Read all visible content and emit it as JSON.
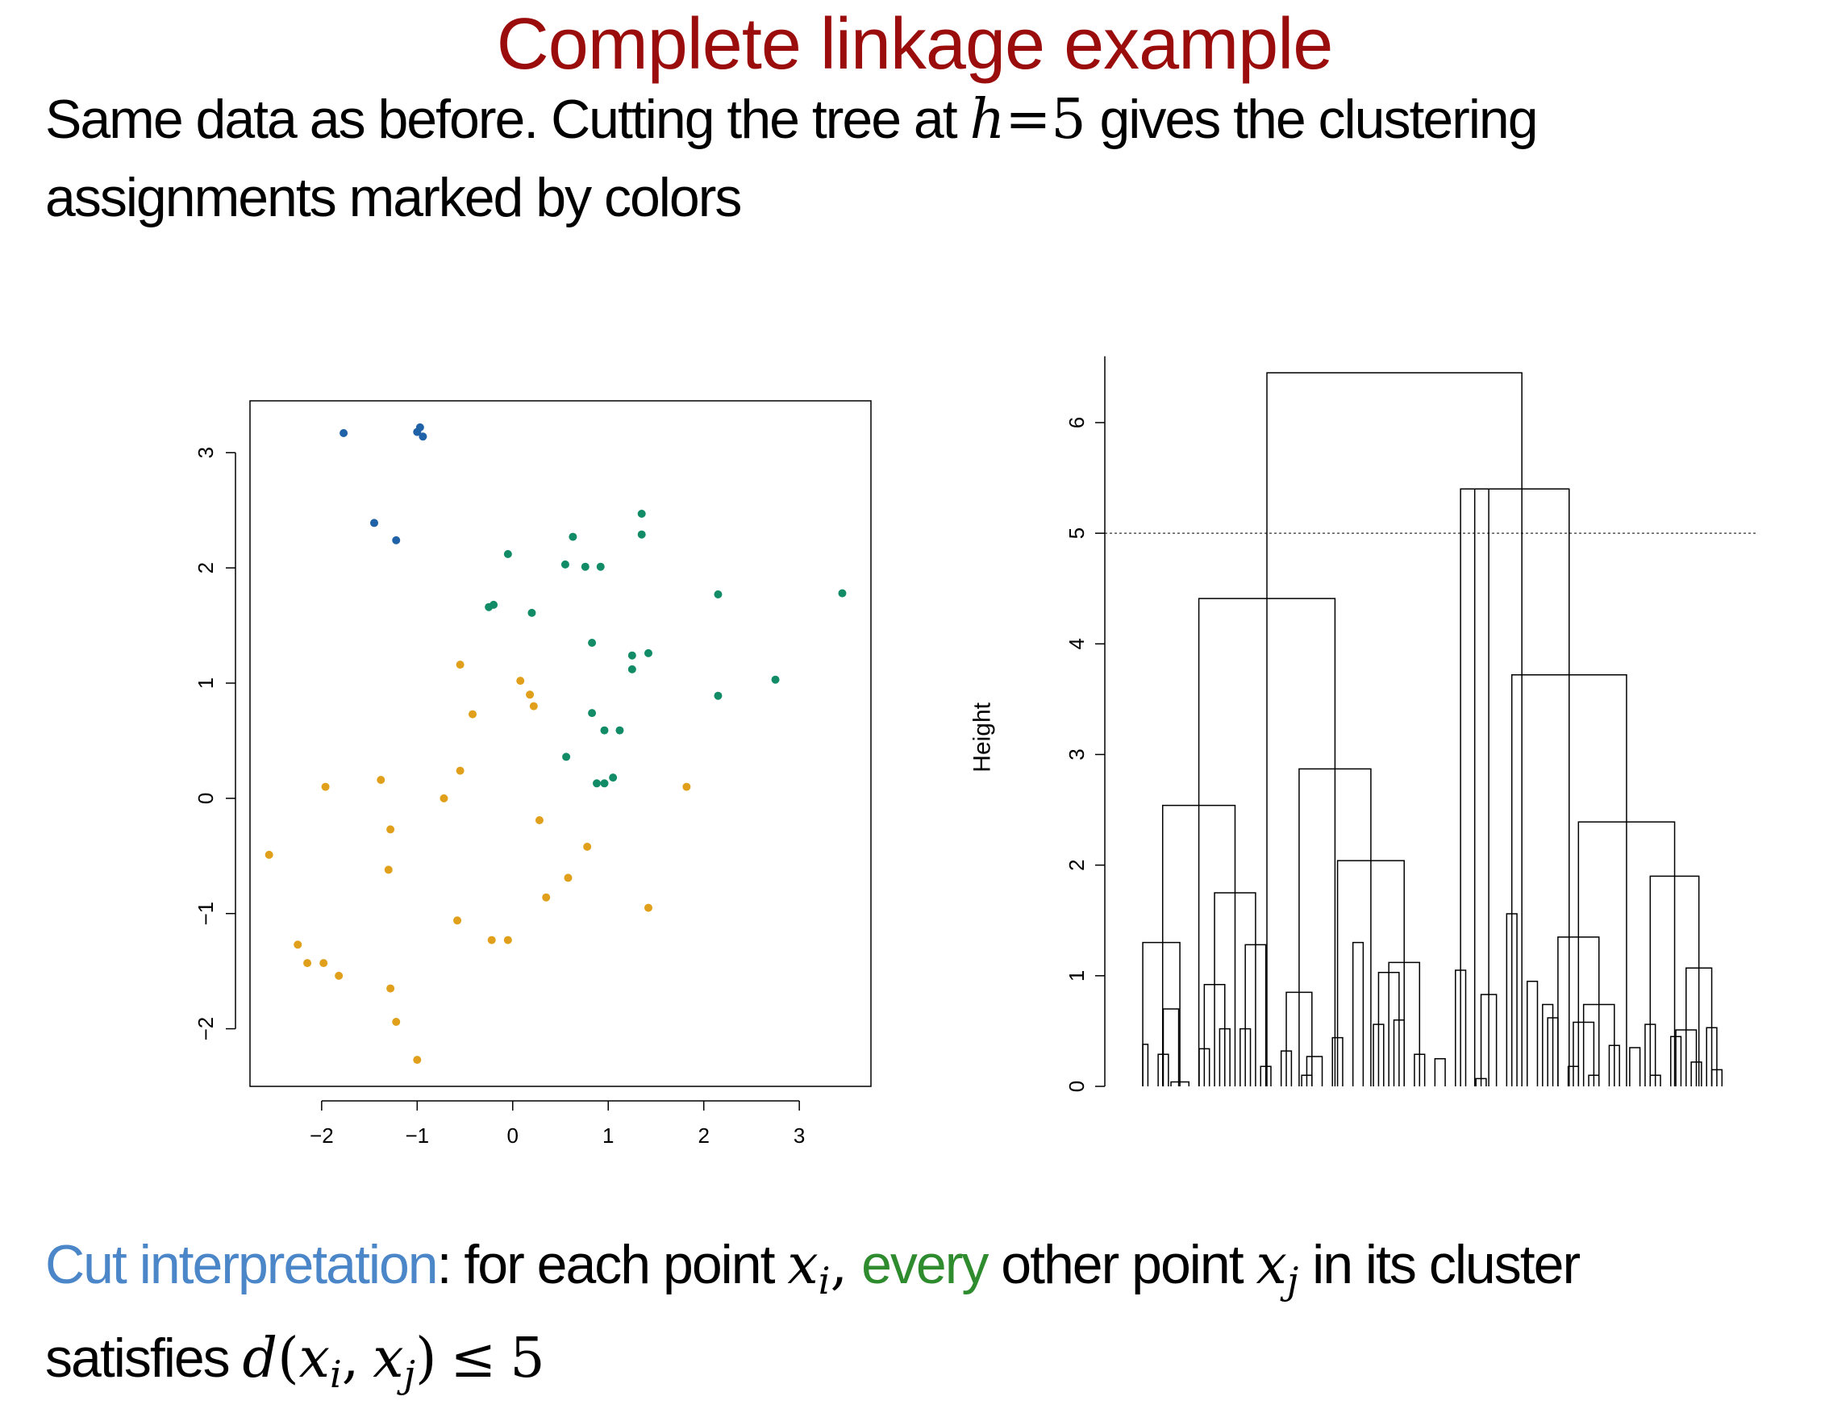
{
  "title": "Complete linkage example",
  "intro": {
    "part1": "Same data as before. Cutting the tree at",
    "var": "h",
    "eq": "=",
    "val": "5",
    "part2": "gives the clustering",
    "line2": "assignments marked by colors"
  },
  "colors": {
    "title": "#9b0d0d",
    "blue": "#1f62a8",
    "green": "#128c67",
    "orange": "#e1a01b",
    "cut_term": "#4a86c8",
    "every": "#2e8b2e"
  },
  "footer": {
    "term": "Cut interpretation",
    "colon": ": for each point",
    "xi": "x",
    "i": "i",
    "comma": ",",
    "every": "every",
    "mid": "other point",
    "xj": "x",
    "j": "j",
    "end": "in its cluster",
    "line2": "satisfies",
    "d": "d",
    "lparen": "(",
    "sep": ",",
    "rparen": ")",
    "leq": "≤",
    "bound": "5"
  },
  "chart_data": [
    {
      "type": "scatter",
      "xlim": [
        -2.75,
        3.75
      ],
      "ylim": [
        -2.5,
        3.45
      ],
      "xticks": [
        -2,
        -1,
        0,
        1,
        2,
        3
      ],
      "yticks": [
        -2,
        -1,
        0,
        1,
        2,
        3
      ],
      "xtick_labels": [
        "−2",
        "−1",
        "0",
        "1",
        "2",
        "3"
      ],
      "ytick_labels": [
        "−2",
        "−1",
        "0",
        "1",
        "2",
        "3"
      ],
      "series": [
        {
          "color": "blue",
          "points": [
            [
              -1.77,
              3.17
            ],
            [
              -1.0,
              3.18
            ],
            [
              -0.97,
              3.22
            ],
            [
              -0.94,
              3.14
            ],
            [
              -1.45,
              2.39
            ],
            [
              -1.22,
              2.24
            ]
          ]
        },
        {
          "color": "green",
          "points": [
            [
              1.35,
              2.47
            ],
            [
              1.35,
              2.29
            ],
            [
              0.63,
              2.27
            ],
            [
              -0.05,
              2.12
            ],
            [
              0.55,
              2.03
            ],
            [
              0.76,
              2.01
            ],
            [
              0.92,
              2.01
            ],
            [
              2.15,
              1.77
            ],
            [
              3.45,
              1.78
            ],
            [
              -0.25,
              1.66
            ],
            [
              -0.2,
              1.68
            ],
            [
              0.2,
              1.61
            ],
            [
              0.83,
              1.35
            ],
            [
              1.25,
              1.24
            ],
            [
              1.42,
              1.26
            ],
            [
              1.25,
              1.12
            ],
            [
              2.75,
              1.03
            ],
            [
              2.15,
              0.89
            ],
            [
              0.83,
              0.74
            ],
            [
              0.96,
              0.59
            ],
            [
              1.12,
              0.59
            ],
            [
              0.56,
              0.36
            ],
            [
              0.88,
              0.13
            ],
            [
              0.96,
              0.13
            ],
            [
              1.05,
              0.18
            ]
          ]
        },
        {
          "color": "orange",
          "points": [
            [
              -0.55,
              1.16
            ],
            [
              0.08,
              1.02
            ],
            [
              0.18,
              0.9
            ],
            [
              0.22,
              0.8
            ],
            [
              -0.42,
              0.73
            ],
            [
              -0.55,
              0.24
            ],
            [
              -1.38,
              0.16
            ],
            [
              -1.96,
              0.1
            ],
            [
              1.82,
              0.1
            ],
            [
              -0.72,
              0.0
            ],
            [
              0.28,
              -0.19
            ],
            [
              -1.28,
              -0.27
            ],
            [
              0.78,
              -0.42
            ],
            [
              -1.3,
              -0.62
            ],
            [
              0.58,
              -0.69
            ],
            [
              -2.55,
              -0.49
            ],
            [
              0.35,
              -0.86
            ],
            [
              1.42,
              -0.95
            ],
            [
              -0.58,
              -1.06
            ],
            [
              -0.22,
              -1.23
            ],
            [
              -0.05,
              -1.23
            ],
            [
              -2.25,
              -1.27
            ],
            [
              -2.15,
              -1.43
            ],
            [
              -1.98,
              -1.43
            ],
            [
              -1.82,
              -1.54
            ],
            [
              -1.28,
              -1.65
            ],
            [
              -1.22,
              -1.94
            ],
            [
              -1.0,
              -2.27
            ]
          ]
        }
      ]
    },
    {
      "type": "dendrogram",
      "ylabel": "Height",
      "ylim": [
        0,
        6.5
      ],
      "yticks": [
        0,
        1,
        2,
        3,
        4,
        5,
        6
      ],
      "ytick_labels": [
        "0",
        "1",
        "2",
        "3",
        "4",
        "5",
        "6"
      ],
      "cut_height": 5,
      "leaf_count": 60,
      "merges": [
        [
          1.5,
          5.12,
          1.3
        ],
        [
          1.5,
          2.0,
          0.38
        ],
        [
          3.0,
          4.0,
          0.29
        ],
        [
          3.5,
          5.0,
          0.7
        ],
        [
          4.25,
          6.0,
          0.04
        ],
        [
          7.0,
          8.0,
          0.34
        ],
        [
          9.0,
          10.0,
          0.52
        ],
        [
          7.5,
          9.5,
          0.92
        ],
        [
          11.0,
          12.0,
          0.52
        ],
        [
          13.0,
          14.0,
          0.18
        ],
        [
          11.5,
          13.5,
          1.28
        ],
        [
          8.5,
          12.5,
          1.75
        ],
        [
          3.44,
          10.5,
          2.54
        ],
        [
          15.0,
          16.0,
          0.32
        ],
        [
          17.0,
          18.0,
          0.1
        ],
        [
          17.5,
          19.0,
          0.27
        ],
        [
          15.5,
          18.0,
          0.85
        ],
        [
          20.0,
          21.0,
          0.44
        ],
        [
          22.0,
          23.0,
          1.3
        ],
        [
          24.0,
          25.0,
          0.56
        ],
        [
          26.0,
          27.0,
          0.6
        ],
        [
          24.5,
          26.5,
          1.03
        ],
        [
          28.0,
          29.0,
          0.29
        ],
        [
          25.5,
          28.5,
          1.12
        ],
        [
          20.5,
          27.0,
          2.04
        ],
        [
          16.75,
          23.75,
          2.87
        ],
        [
          6.97,
          20.25,
          4.41
        ],
        [
          30.0,
          31.0,
          0.25
        ],
        [
          32.0,
          33.0,
          1.05
        ],
        [
          34.0,
          35.0,
          0.07
        ],
        [
          34.5,
          36.0,
          0.83
        ],
        [
          32.5,
          35.25,
          5.4
        ],
        [
          37.0,
          38.0,
          1.56
        ],
        [
          39.0,
          40.0,
          0.95
        ],
        [
          41.0,
          42.0,
          0.62
        ],
        [
          40.5,
          41.5,
          0.74
        ],
        [
          43.0,
          44.0,
          0.18
        ],
        [
          45.0,
          46.0,
          0.1
        ],
        [
          43.5,
          45.5,
          0.58
        ],
        [
          47.0,
          48.0,
          0.37
        ],
        [
          44.5,
          47.5,
          0.74
        ],
        [
          42.0,
          46.0,
          1.35
        ],
        [
          49.0,
          50.0,
          0.35
        ],
        [
          51.0,
          52.0,
          0.1
        ],
        [
          50.5,
          51.5,
          0.56
        ],
        [
          53.0,
          54.0,
          0.45
        ],
        [
          55.0,
          56.0,
          0.22
        ],
        [
          53.5,
          55.5,
          0.51
        ],
        [
          57.0,
          58.0,
          0.15
        ],
        [
          56.5,
          57.5,
          0.53
        ],
        [
          54.5,
          57.0,
          1.07
        ],
        [
          51.0,
          55.75,
          1.9
        ],
        [
          44.0,
          53.38,
          2.39
        ],
        [
          37.5,
          48.69,
          3.72
        ],
        [
          33.88,
          43.09,
          5.4
        ],
        [
          13.61,
          38.48,
          6.45
        ]
      ]
    }
  ]
}
